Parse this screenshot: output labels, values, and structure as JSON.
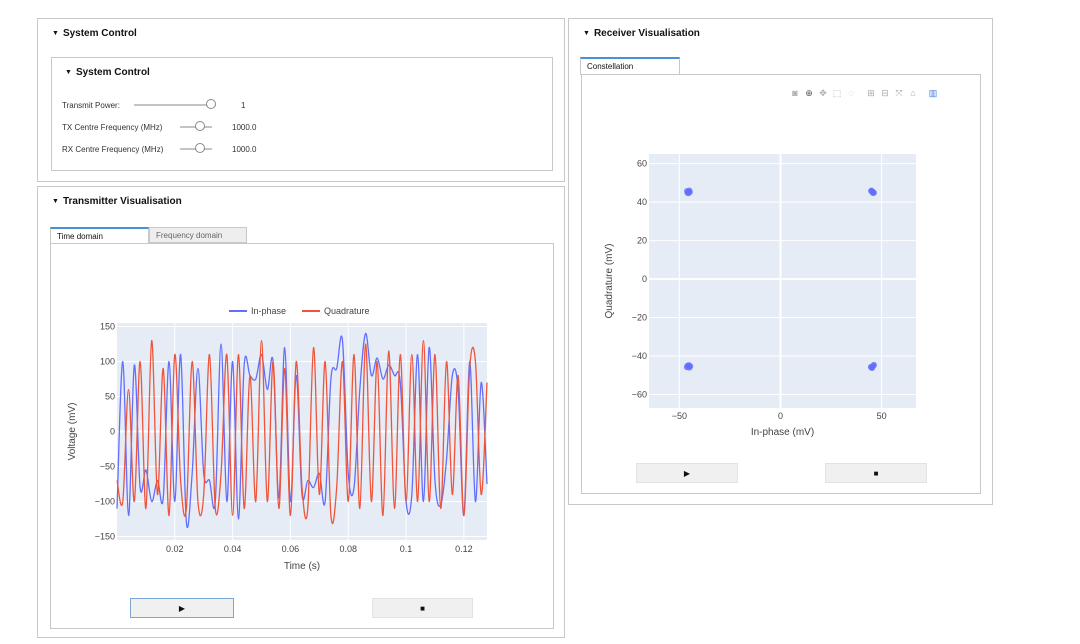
{
  "system_control": {
    "outer_title": "System Control",
    "inner_title": "System Control",
    "controls": [
      {
        "label": "Transmit Power:",
        "value": "1",
        "level": 1.0
      },
      {
        "label": "TX Centre Frequency (MHz)",
        "value": "1000.0",
        "level": 0.5
      },
      {
        "label": "RX Centre Frequency (MHz)",
        "value": "1000.0",
        "level": 0.5
      }
    ]
  },
  "transmitter": {
    "title": "Transmitter Visualisation",
    "tabs": [
      "Time domain",
      "Frequency domain"
    ],
    "play_label": "▶",
    "stop_label": "■"
  },
  "receiver": {
    "title": "Receiver Visualisation",
    "tabs": [
      "Constellation"
    ],
    "play_label": "▶",
    "stop_label": "■",
    "modebar_icons": [
      "camera-icon",
      "zoom-icon",
      "pan-icon",
      "box-select-icon",
      "lasso-icon",
      "zoom-in-icon",
      "zoom-out-icon",
      "autoscale-icon",
      "home-icon",
      "plotly-logo-icon"
    ]
  },
  "colors": {
    "in_phase": "#636efa",
    "quadrature": "#ef553b",
    "plot_bg": "#e5ecf6"
  },
  "chart_data": [
    {
      "type": "line",
      "xlabel": "Time (s)",
      "ylabel": "Voltage (mV)",
      "xlim": [
        0.0,
        0.128
      ],
      "ylim": [
        -155,
        155
      ],
      "xticks": [
        "0.02",
        "0.04",
        "0.06",
        "0.08",
        "0.1",
        "0.12"
      ],
      "yticks": [
        "150",
        "100",
        "50",
        "0",
        "−50",
        "−100",
        "−150"
      ],
      "legend": "top-center",
      "series": [
        {
          "name": "In-phase",
          "color": "#636efa",
          "x": [
            0,
            0.002,
            0.004,
            0.006,
            0.008,
            0.01,
            0.012,
            0.014,
            0.016,
            0.018,
            0.02,
            0.022,
            0.024,
            0.026,
            0.028,
            0.03,
            0.032,
            0.034,
            0.036,
            0.038,
            0.04,
            0.042,
            0.044,
            0.046,
            0.048,
            0.05,
            0.052,
            0.054,
            0.056,
            0.058,
            0.06,
            0.062,
            0.064,
            0.066,
            0.068,
            0.07,
            0.072,
            0.074,
            0.076,
            0.078,
            0.08,
            0.082,
            0.084,
            0.086,
            0.088,
            0.09,
            0.092,
            0.094,
            0.096,
            0.098,
            0.1,
            0.102,
            0.104,
            0.106,
            0.108,
            0.11,
            0.112,
            0.114,
            0.116,
            0.118,
            0.12,
            0.122,
            0.124,
            0.126,
            0.128
          ],
          "y": [
            -110,
            100,
            -120,
            95,
            -80,
            -55,
            -100,
            -70,
            -95,
            100,
            -100,
            110,
            -130,
            -60,
            90,
            -60,
            -70,
            -100,
            125,
            -100,
            100,
            -125,
            95,
            80,
            75,
            110,
            60,
            100,
            -95,
            120,
            -100,
            80,
            -90,
            -70,
            -80,
            -60,
            -100,
            75,
            90,
            130,
            -60,
            -80,
            60,
            140,
            80,
            105,
            75,
            95,
            80,
            70,
            -100,
            -90,
            110,
            -100,
            120,
            -70,
            -105,
            -40,
            80,
            60,
            -120,
            100,
            -100,
            70,
            -75
          ]
        },
        {
          "name": "Quadrature",
          "color": "#ef553b",
          "x": [
            0,
            0.002,
            0.004,
            0.006,
            0.008,
            0.01,
            0.012,
            0.014,
            0.016,
            0.018,
            0.02,
            0.022,
            0.024,
            0.026,
            0.028,
            0.03,
            0.032,
            0.034,
            0.036,
            0.038,
            0.04,
            0.042,
            0.044,
            0.046,
            0.048,
            0.05,
            0.052,
            0.054,
            0.056,
            0.058,
            0.06,
            0.062,
            0.064,
            0.066,
            0.068,
            0.07,
            0.072,
            0.074,
            0.076,
            0.078,
            0.08,
            0.082,
            0.084,
            0.086,
            0.088,
            0.09,
            0.092,
            0.094,
            0.096,
            0.098,
            0.1,
            0.102,
            0.104,
            0.106,
            0.108,
            0.11,
            0.112,
            0.114,
            0.116,
            0.118,
            0.12,
            0.122,
            0.124,
            0.126,
            0.128
          ],
          "y": [
            -70,
            -100,
            60,
            -100,
            100,
            -110,
            130,
            -90,
            90,
            -120,
            110,
            -70,
            -110,
            100,
            -100,
            -90,
            110,
            -110,
            -60,
            110,
            -120,
            110,
            -110,
            80,
            -100,
            130,
            -100,
            100,
            -110,
            90,
            -120,
            100,
            -80,
            -110,
            120,
            -90,
            100,
            -120,
            -80,
            100,
            -100,
            110,
            -110,
            125,
            -100,
            100,
            -120,
            115,
            -110,
            110,
            -100,
            110,
            -100,
            130,
            -100,
            110,
            -110,
            100,
            -90,
            80,
            -120,
            90,
            100,
            -90,
            70
          ]
        }
      ]
    },
    {
      "type": "scatter",
      "xlabel": "In-phase (mV)",
      "ylabel": "Quadrature (mV)",
      "xlim": [
        -65,
        67
      ],
      "ylim": [
        -67,
        65
      ],
      "xticks": [
        "−50",
        "0",
        "50"
      ],
      "yticks": [
        "60",
        "40",
        "20",
        "0",
        "−20",
        "−40",
        "−60"
      ],
      "series": [
        {
          "name": "",
          "color": "#636efa",
          "points": [
            [
              -45.5,
              45.5
            ],
            [
              -46,
              44.8
            ],
            [
              -45,
              46
            ],
            [
              -44.8,
              45.2
            ],
            [
              -46.2,
              45.8
            ],
            [
              -45.4,
              44.6
            ],
            [
              45.5,
              45.5
            ],
            [
              45,
              46
            ],
            [
              46,
              45
            ],
            [
              46.2,
              44.8
            ],
            [
              44.8,
              45.8
            ],
            [
              45.6,
              44.7
            ],
            [
              -45.5,
              -45.5
            ],
            [
              -46,
              -45
            ],
            [
              -45,
              -46
            ],
            [
              -44.6,
              -45.3
            ],
            [
              -46.3,
              -45.8
            ],
            [
              -45.2,
              -44.7
            ],
            [
              45.5,
              -45.5
            ],
            [
              45,
              -46
            ],
            [
              46,
              -45
            ],
            [
              44.7,
              -45.6
            ],
            [
              46.2,
              -44.6
            ],
            [
              45.3,
              -46.2
            ]
          ]
        }
      ]
    }
  ]
}
